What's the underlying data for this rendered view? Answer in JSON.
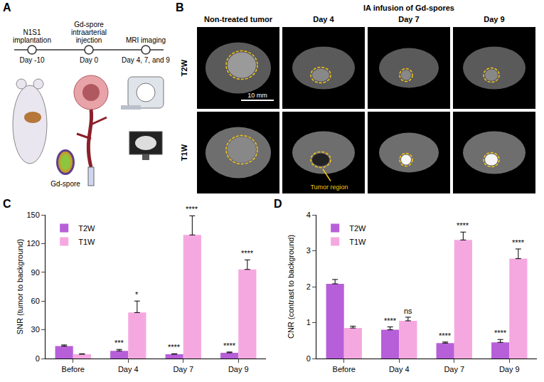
{
  "panel_a": {
    "label": "A",
    "timeline": [
      {
        "event": "N1S1 implantation",
        "day": "Day -10"
      },
      {
        "event": "Gd-spore intraarterial injection",
        "day": "Day 0"
      },
      {
        "event": "MRI imaging",
        "day": "Day 4, 7, and 9"
      }
    ],
    "spore_label": "Gd-spore"
  },
  "panel_b": {
    "label": "B",
    "title": "IA infusion of Gd-spores",
    "columns": [
      "Non-treated tumor",
      "Day 4",
      "Day 7",
      "Day 9"
    ],
    "rows": [
      "T2W",
      "T1W"
    ],
    "scale_bar": "10 mm",
    "annotation": "Tumor region"
  },
  "chart_data": [
    {
      "type": "bar",
      "panel_label": "C",
      "y_label": "SNR (tumor to background)",
      "categories": [
        "Before",
        "Day 4",
        "Day 7",
        "Day 9"
      ],
      "series": [
        {
          "name": "T2W",
          "color": "#b75fd8",
          "values": [
            13,
            8,
            4.5,
            6
          ],
          "errors": [
            1.2,
            1.5,
            0.5,
            0.8
          ],
          "significance": [
            null,
            "***",
            "****",
            "****"
          ]
        },
        {
          "name": "T1W",
          "color": "#f5a8e0",
          "values": [
            4.5,
            48,
            129,
            93
          ],
          "errors": [
            0.5,
            12,
            20,
            10
          ],
          "significance": [
            null,
            "*",
            "****",
            "****"
          ]
        }
      ],
      "ylim": [
        0,
        150
      ],
      "yticks": [
        0,
        30,
        60,
        90,
        120,
        150
      ],
      "grid": false,
      "legend": "top left"
    },
    {
      "type": "bar",
      "panel_label": "D",
      "y_label": "CNR (contrast to background)",
      "categories": [
        "Before",
        "Day 4",
        "Day 7",
        "Day 9"
      ],
      "series": [
        {
          "name": "T2W",
          "color": "#b75fd8",
          "values": [
            2.08,
            0.8,
            0.43,
            0.45
          ],
          "errors": [
            0.12,
            0.08,
            0.03,
            0.08
          ],
          "significance": [
            null,
            "****",
            "****",
            "****"
          ]
        },
        {
          "name": "T1W",
          "color": "#f5a8e0",
          "values": [
            0.85,
            1.05,
            3.3,
            2.78
          ],
          "errors": [
            0.05,
            0.1,
            0.22,
            0.27
          ],
          "significance": [
            null,
            "ns",
            "****",
            "****"
          ]
        }
      ],
      "ylim": [
        0,
        4
      ],
      "yticks": [
        0,
        1,
        2,
        3,
        4
      ],
      "grid": false,
      "legend": "top left"
    }
  ]
}
